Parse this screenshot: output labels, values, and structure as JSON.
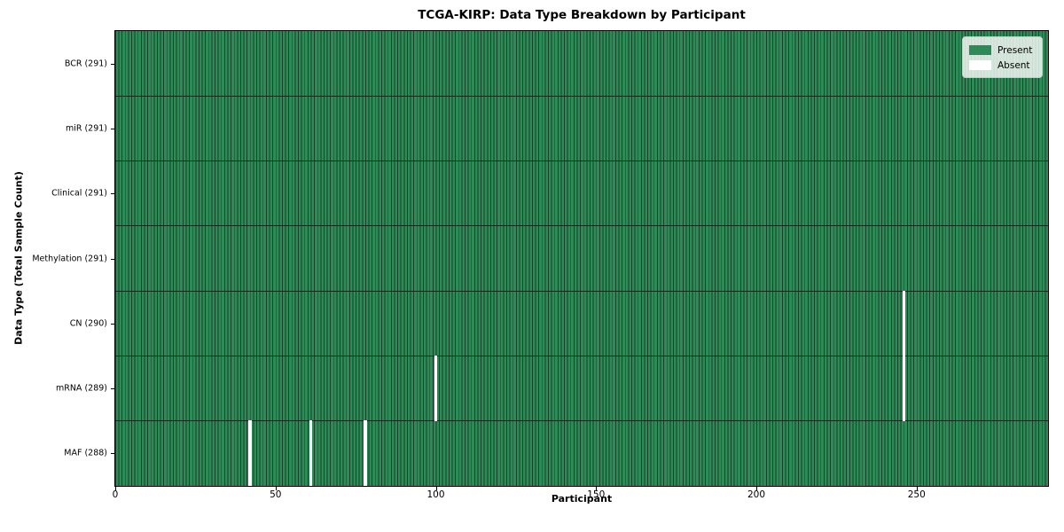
{
  "chart_data": {
    "type": "heatmap",
    "title": "TCGA-KIRP: Data Type Breakdown by Participant",
    "xlabel": "Participant",
    "ylabel": "Data Type (Total Sample Count)",
    "n_participants": 291,
    "x_ticks": [
      0,
      50,
      100,
      150,
      200,
      250
    ],
    "legend": {
      "position": "upper right",
      "entries": [
        {
          "label": "Present",
          "color": "#2e8b57"
        },
        {
          "label": "Absent",
          "color": "#ffffff"
        }
      ]
    },
    "colors": {
      "present_fill": "#2e8b57",
      "bar_edge": "#17412a",
      "absent_fill": "#ffffff",
      "row_divider": "#0e2b1c",
      "axis": "#000000",
      "background": "#ffffff"
    },
    "rows": [
      {
        "label": "BCR (291)",
        "data_type": "BCR",
        "total_samples": 291,
        "absent_participants": []
      },
      {
        "label": "miR (291)",
        "data_type": "miR",
        "total_samples": 291,
        "absent_participants": []
      },
      {
        "label": "Clinical (291)",
        "data_type": "Clinical",
        "total_samples": 291,
        "absent_participants": []
      },
      {
        "label": "Methylation (291)",
        "data_type": "Methylation",
        "total_samples": 291,
        "absent_participants": []
      },
      {
        "label": "CN (290)",
        "data_type": "CN",
        "total_samples": 290,
        "absent_participants": [
          246
        ]
      },
      {
        "label": "mRNA (289)",
        "data_type": "mRNA",
        "total_samples": 289,
        "absent_participants": [
          100,
          246
        ]
      },
      {
        "label": "MAF (288)",
        "data_type": "MAF",
        "total_samples": 288,
        "absent_participants": [
          42,
          61,
          78
        ]
      }
    ]
  }
}
